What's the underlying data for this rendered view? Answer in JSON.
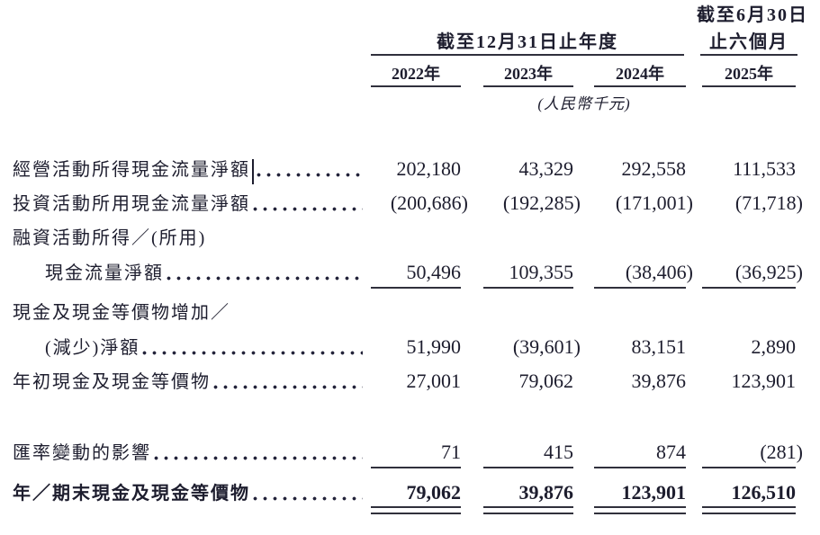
{
  "table": {
    "header": {
      "period_interim_line1": "截至6月30日",
      "period_interim_line2": "止六個月",
      "period_annual": "截至12月31日止年度",
      "years": [
        "2022年",
        "2023年",
        "2024年",
        "2025年"
      ],
      "unit_note": "(人民幣千元)"
    },
    "rows": [
      {
        "label": "經營活動所得現金流量淨額",
        "values": [
          "202,180",
          "43,329",
          "292,558",
          "111,533"
        ]
      },
      {
        "label": "投資活動所用現金流量淨額",
        "values": [
          "(200,686)",
          "(192,285)",
          "(171,001)",
          "(71,718)"
        ]
      },
      {
        "label": "融資活動所得／(所用)",
        "values": [
          "",
          "",
          "",
          ""
        ]
      },
      {
        "label": "現金流量淨額",
        "values": [
          "50,496",
          "109,355",
          "(38,406)",
          "(36,925)"
        ]
      },
      {
        "label": "現金及現金等價物增加／",
        "values": [
          "",
          "",
          "",
          ""
        ]
      },
      {
        "label": "(減少)淨額",
        "values": [
          "51,990",
          "(39,601)",
          "83,151",
          "2,890"
        ]
      },
      {
        "label": "年初現金及現金等價物",
        "values": [
          "27,001",
          "79,062",
          "39,876",
          "123,901"
        ]
      },
      {
        "label": "匯率變動的影響",
        "values": [
          "71",
          "415",
          "874",
          "(281)"
        ]
      },
      {
        "label": "年／期末現金及現金等價物",
        "values": [
          "79,062",
          "39,876",
          "123,901",
          "126,510"
        ]
      }
    ],
    "colors": {
      "text": "#1d1d2e",
      "rule": "#30303c",
      "background": "#ffffff"
    }
  }
}
